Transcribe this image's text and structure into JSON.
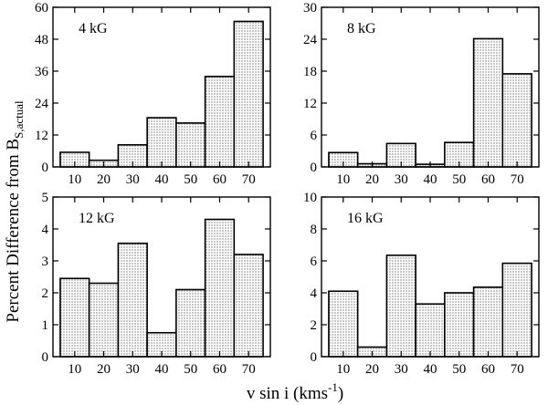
{
  "chart_data": [
    {
      "type": "bar",
      "annotation": "4 kG",
      "categories": [
        "10",
        "20",
        "30",
        "40",
        "50",
        "60",
        "70"
      ],
      "x": [
        10,
        20,
        30,
        40,
        50,
        60,
        70
      ],
      "values": [
        5.5,
        2.5,
        8.3,
        18.5,
        16.5,
        34.0,
        54.7
      ],
      "ylim": [
        0,
        60
      ],
      "yticks": [
        "0",
        "12",
        "24",
        "36",
        "48",
        "60"
      ],
      "yticks_values": [
        0,
        12,
        24,
        36,
        48,
        60
      ]
    },
    {
      "type": "bar",
      "annotation": "8 kG",
      "categories": [
        "10",
        "20",
        "30",
        "40",
        "50",
        "60",
        "70"
      ],
      "x": [
        10,
        20,
        30,
        40,
        50,
        60,
        70
      ],
      "values": [
        2.7,
        0.6,
        4.4,
        0.5,
        4.6,
        24.1,
        17.5
      ],
      "ylim": [
        0,
        30
      ],
      "yticks": [
        "0",
        "6",
        "12",
        "18",
        "24",
        "30"
      ],
      "yticks_values": [
        0,
        6,
        12,
        18,
        24,
        30
      ]
    },
    {
      "type": "bar",
      "annotation": "12 kG",
      "categories": [
        "10",
        "20",
        "30",
        "40",
        "50",
        "60",
        "70"
      ],
      "x": [
        10,
        20,
        30,
        40,
        50,
        60,
        70
      ],
      "values": [
        2.45,
        2.3,
        3.55,
        0.75,
        2.1,
        4.3,
        3.2
      ],
      "ylim": [
        0,
        5
      ],
      "yticks": [
        "0",
        "1",
        "2",
        "3",
        "4",
        "5"
      ],
      "yticks_values": [
        0,
        1,
        2,
        3,
        4,
        5
      ]
    },
    {
      "type": "bar",
      "annotation": "16 kG",
      "categories": [
        "10",
        "20",
        "30",
        "40",
        "50",
        "60",
        "70"
      ],
      "x": [
        10,
        20,
        30,
        40,
        50,
        60,
        70
      ],
      "values": [
        4.1,
        0.6,
        6.35,
        3.3,
        4.0,
        4.35,
        5.85
      ],
      "ylim": [
        0,
        10
      ],
      "yticks": [
        "0",
        "2",
        "4",
        "6",
        "8",
        "10"
      ],
      "yticks_values": [
        0,
        2,
        4,
        6,
        8,
        10
      ]
    }
  ],
  "shared": {
    "xlabel_main": "v sin i (kms",
    "xlabel_sup": "-1",
    "xlabel_end": ")",
    "ylabel_main": "Percent Difference from B",
    "ylabel_sub": "S,actual",
    "xlim": [
      2.5,
      77.5
    ]
  }
}
